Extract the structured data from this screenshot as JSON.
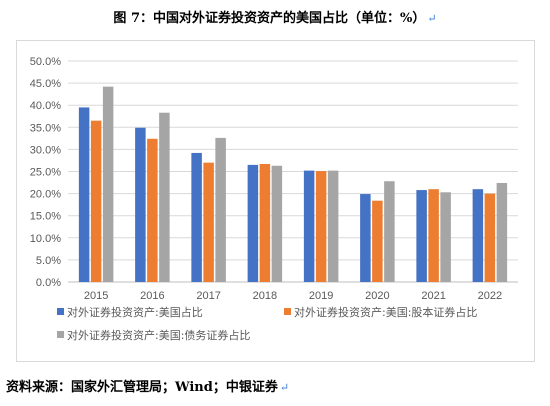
{
  "figure": {
    "title": "图 7：中国对外证券投资资产的美国占比（单位：%）",
    "source": "资料来源：国家外汇管理局；Wind；中银证券",
    "return_mark": "↵"
  },
  "chart_data": {
    "type": "bar",
    "categories": [
      "2015",
      "2016",
      "2017",
      "2018",
      "2019",
      "2020",
      "2021",
      "2022"
    ],
    "series": [
      {
        "name": "对外证券投资资产:美国占比",
        "color": "#4472c4",
        "values": [
          39.5,
          34.9,
          29.2,
          26.5,
          25.2,
          19.9,
          20.8,
          21.0
        ]
      },
      {
        "name": "对外证券投资资产:美国:股本证券占比",
        "color": "#ed7d31",
        "values": [
          36.5,
          32.4,
          27.0,
          26.7,
          25.1,
          18.4,
          21.0,
          20.0
        ]
      },
      {
        "name": "对外证券投资资产:美国:债务证券占比",
        "color": "#a5a5a5",
        "values": [
          44.2,
          38.3,
          32.6,
          26.3,
          25.2,
          22.8,
          20.3,
          22.4
        ]
      }
    ],
    "ylim": [
      0,
      50
    ],
    "yticks": [
      "0.0%",
      "5.0%",
      "10.0%",
      "15.0%",
      "20.0%",
      "25.0%",
      "30.0%",
      "35.0%",
      "40.0%",
      "45.0%",
      "50.0%"
    ],
    "grid": true,
    "legend_position": "bottom"
  }
}
